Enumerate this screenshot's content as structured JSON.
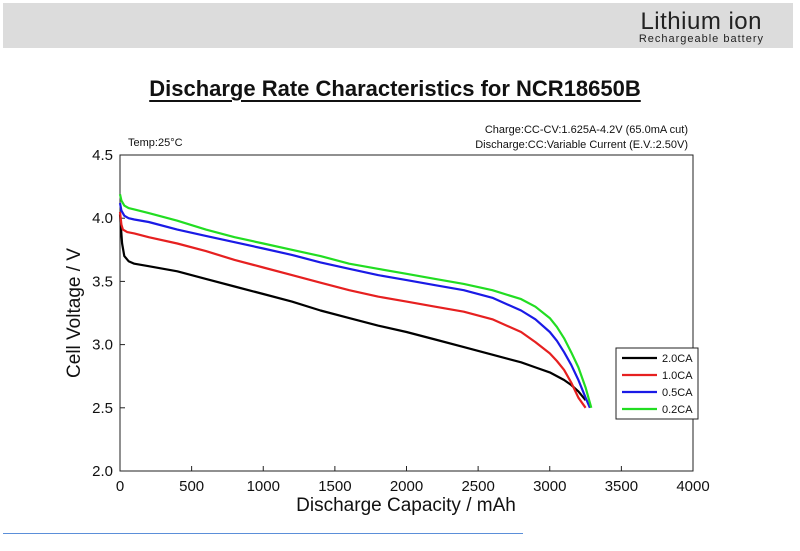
{
  "header": {
    "brand_title": "Lithium ion",
    "brand_subtitle": "Rechargeable  battery"
  },
  "chart_data": {
    "type": "line",
    "title": "Discharge Rate Characteristics for NCR18650B",
    "xlabel": "Discharge  Capacity  /  mAh",
    "ylabel": "Cell Voltage  /  V",
    "xlim": [
      0,
      4000
    ],
    "ylim": [
      2.0,
      4.5
    ],
    "xticks": [
      "0",
      "500",
      "1000",
      "1500",
      "2000",
      "2500",
      "3000",
      "3500",
      "4000"
    ],
    "yticks": [
      "2.0",
      "2.5",
      "3.0",
      "3.5",
      "4.0",
      "4.5"
    ],
    "grid": false,
    "legend_position": "right",
    "annotations": {
      "temp": "Temp:25°C",
      "charge": "Charge:CC-CV:1.625A-4.2V (65.0mA cut)",
      "discharge": "Discharge:CC:Variable Current (E.V.:2.50V)"
    },
    "series": [
      {
        "name": "2.0CA",
        "color": "#000000",
        "x": [
          0,
          15,
          30,
          60,
          100,
          200,
          400,
          600,
          800,
          1000,
          1200,
          1400,
          1600,
          1800,
          2000,
          2200,
          2400,
          2600,
          2800,
          2900,
          3000,
          3100,
          3150,
          3200,
          3250
        ],
        "y": [
          4.03,
          3.8,
          3.7,
          3.66,
          3.64,
          3.62,
          3.58,
          3.52,
          3.46,
          3.4,
          3.34,
          3.27,
          3.21,
          3.15,
          3.1,
          3.04,
          2.98,
          2.92,
          2.86,
          2.82,
          2.78,
          2.72,
          2.68,
          2.63,
          2.56
        ]
      },
      {
        "name": "1.0CA",
        "color": "#e62020",
        "x": [
          0,
          10,
          20,
          50,
          100,
          200,
          400,
          600,
          800,
          1000,
          1200,
          1400,
          1600,
          1800,
          2000,
          2200,
          2400,
          2600,
          2800,
          2900,
          3000,
          3050,
          3100,
          3150,
          3200,
          3250
        ],
        "y": [
          4.05,
          3.95,
          3.91,
          3.89,
          3.88,
          3.85,
          3.8,
          3.74,
          3.67,
          3.61,
          3.55,
          3.49,
          3.43,
          3.38,
          3.34,
          3.3,
          3.26,
          3.2,
          3.1,
          3.02,
          2.93,
          2.87,
          2.8,
          2.7,
          2.58,
          2.5
        ]
      },
      {
        "name": "0.5CA",
        "color": "#1a1ae6",
        "x": [
          0,
          10,
          30,
          60,
          100,
          200,
          400,
          600,
          800,
          1000,
          1200,
          1400,
          1600,
          1800,
          2000,
          2200,
          2400,
          2600,
          2800,
          2900,
          3000,
          3050,
          3100,
          3150,
          3200,
          3250,
          3280
        ],
        "y": [
          4.12,
          4.06,
          4.02,
          4.0,
          3.99,
          3.97,
          3.91,
          3.86,
          3.81,
          3.76,
          3.71,
          3.65,
          3.6,
          3.55,
          3.51,
          3.47,
          3.43,
          3.37,
          3.27,
          3.2,
          3.1,
          3.03,
          2.94,
          2.84,
          2.72,
          2.58,
          2.5
        ]
      },
      {
        "name": "0.2CA",
        "color": "#22dd22",
        "x": [
          0,
          10,
          30,
          60,
          100,
          200,
          400,
          600,
          800,
          1000,
          1200,
          1400,
          1600,
          1800,
          2000,
          2200,
          2400,
          2600,
          2800,
          2900,
          3000,
          3050,
          3100,
          3150,
          3200,
          3250,
          3290
        ],
        "y": [
          4.19,
          4.14,
          4.1,
          4.08,
          4.07,
          4.04,
          3.98,
          3.91,
          3.85,
          3.8,
          3.75,
          3.7,
          3.64,
          3.6,
          3.56,
          3.52,
          3.48,
          3.43,
          3.36,
          3.3,
          3.21,
          3.14,
          3.05,
          2.94,
          2.82,
          2.66,
          2.5
        ]
      }
    ]
  }
}
